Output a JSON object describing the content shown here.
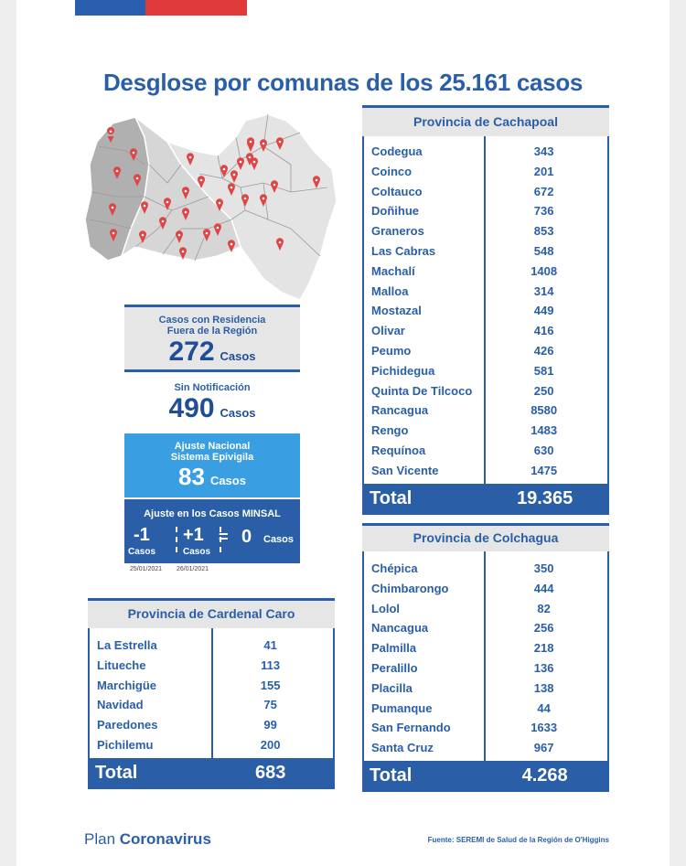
{
  "title": "Desglose por comunas de los 25.161 casos",
  "fuera_region": {
    "label_line1": "Casos con Residencia",
    "label_line2": "Fuera de la Región",
    "value": "272",
    "unit": "Casos"
  },
  "sin_notificacion": {
    "label": "Sin Notificación",
    "value": "490",
    "unit": "Casos"
  },
  "ajuste_nacional": {
    "label_line1": "Ajuste Nacional",
    "label_line2": "Sistema Epivigila",
    "value": "83",
    "unit": "Casos"
  },
  "ajuste_minsal": {
    "title": "Ajuste en los Casos MINSAL",
    "value_a": "-1",
    "unit_a": "Casos",
    "value_b": "+1",
    "unit_b": "Casos",
    "equals": "=",
    "result": "0",
    "result_unit": "Casos",
    "date_a": "25/01/2021",
    "date_b": "26/01/2021"
  },
  "cachapoal": {
    "header": "Provincia de Cachapoal",
    "rows": [
      {
        "name": "Codegua",
        "value": "343"
      },
      {
        "name": "Coinco",
        "value": "201"
      },
      {
        "name": "Coltauco",
        "value": "672"
      },
      {
        "name": "Doñihue",
        "value": "736"
      },
      {
        "name": "Graneros",
        "value": "853"
      },
      {
        "name": "Las Cabras",
        "value": "548"
      },
      {
        "name": "Machalí",
        "value": "1408"
      },
      {
        "name": "Malloa",
        "value": "314"
      },
      {
        "name": "Mostazal",
        "value": "449"
      },
      {
        "name": "Olivar",
        "value": "416"
      },
      {
        "name": "Peumo",
        "value": "426"
      },
      {
        "name": "Pichidegua",
        "value": "581"
      },
      {
        "name": "Quinta De Tilcoco",
        "value": "250"
      },
      {
        "name": "Rancagua",
        "value": "8580"
      },
      {
        "name": "Rengo",
        "value": "1483"
      },
      {
        "name": "Requínoa",
        "value": "630"
      },
      {
        "name": "San Vicente",
        "value": "1475"
      }
    ],
    "total_label": "Total",
    "total_value": "19.365"
  },
  "colchagua": {
    "header": "Provincia de Colchagua",
    "rows": [
      {
        "name": "Chépica",
        "value": "350"
      },
      {
        "name": "Chimbarongo",
        "value": "444"
      },
      {
        "name": "Lolol",
        "value": "82"
      },
      {
        "name": "Nancagua",
        "value": "256"
      },
      {
        "name": "Palmilla",
        "value": "218"
      },
      {
        "name": "Peralillo",
        "value": "136"
      },
      {
        "name": "Placilla",
        "value": "138"
      },
      {
        "name": "Pumanque",
        "value": "44"
      },
      {
        "name": "San Fernando",
        "value": "1633"
      },
      {
        "name": "Santa Cruz",
        "value": "967"
      }
    ],
    "total_label": "Total",
    "total_value": "4.268"
  },
  "cardenal_caro": {
    "header": "Provincia de Cardenal Caro",
    "rows": [
      {
        "name": "La Estrella",
        "value": "41"
      },
      {
        "name": "Litueche",
        "value": "113"
      },
      {
        "name": "Marchigüe",
        "value": "155"
      },
      {
        "name": "Navidad",
        "value": "75"
      },
      {
        "name": "Paredones",
        "value": "99"
      },
      {
        "name": "Pichilemu",
        "value": "200"
      }
    ],
    "total_label": "Total",
    "total_value": "683"
  },
  "footer": {
    "plan_prefix": "Plan",
    "plan_name": "Coronavirus",
    "source": "Fuente: SEREMI de Salud de la Región de O'Higgins"
  },
  "colors": {
    "primary": "#2a5fa8",
    "light_blue": "#3a9ee2",
    "grey": "#e6e6e6",
    "pin": "#e04545",
    "flag_red": "#e03a3a"
  },
  "map": {
    "icon": "map-pin-icon"
  }
}
